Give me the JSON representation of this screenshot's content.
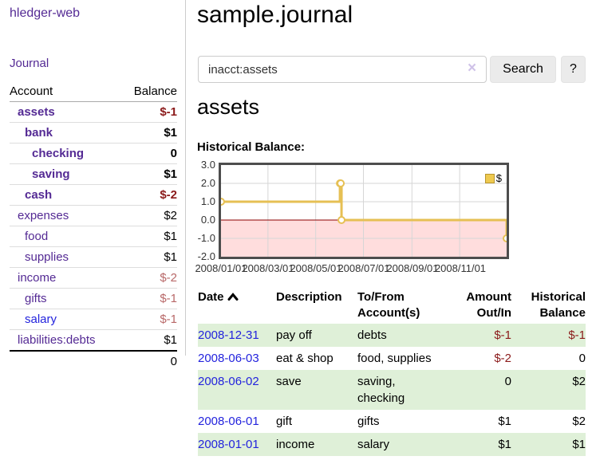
{
  "colors": {
    "purple": "#542a94",
    "blue": "#2323dd",
    "neg": "#8b1a1a",
    "negmuted": "#b86868",
    "stripe": "#dff0d8"
  },
  "sidebar": {
    "brand": "hledger-web",
    "journal_link": "Journal",
    "header": {
      "account": "Account",
      "balance": "Balance"
    },
    "accounts": [
      {
        "name": "assets",
        "balance": "$-1"
      },
      {
        "name": "bank",
        "balance": "$1"
      },
      {
        "name": "checking",
        "balance": "0"
      },
      {
        "name": "saving",
        "balance": "$1"
      },
      {
        "name": "cash",
        "balance": "$-2"
      },
      {
        "name": "expenses",
        "balance": "$2"
      },
      {
        "name": "food",
        "balance": "$1"
      },
      {
        "name": "supplies",
        "balance": "$1"
      },
      {
        "name": "income",
        "balance": "$-2"
      },
      {
        "name": "gifts",
        "balance": "$-1"
      },
      {
        "name": "salary",
        "balance": "$-1"
      },
      {
        "name": "liabilities:debts",
        "balance": "$1"
      }
    ],
    "total": "0"
  },
  "main": {
    "title": "sample.journal",
    "search": {
      "value": "inacct:assets",
      "clear_icon": "×",
      "search_button": "Search",
      "help_button": "?"
    },
    "account_heading": "assets",
    "chart_title": "Historical Balance:"
  },
  "chart_data": {
    "type": "line",
    "step": "after",
    "title": "Historical Balance:",
    "legend": {
      "label": "$",
      "position": "top-right"
    },
    "x": [
      "2008-01-01",
      "2008-06-01",
      "2008-06-02",
      "2008-06-03",
      "2008-12-31"
    ],
    "series": [
      {
        "name": "$",
        "values": [
          1,
          2,
          2,
          0,
          -1
        ]
      }
    ],
    "xlim": [
      "2008-01-01",
      "2008-12-31"
    ],
    "ylim": [
      -2,
      3
    ],
    "yticks": [
      "3.0",
      "2.0",
      "1.0",
      "0.0",
      "-1.0",
      "-2.0"
    ],
    "xticks": [
      "2008/01/01",
      "2008/03/01",
      "2008/05/01",
      "2008/07/01",
      "2008/09/01",
      "2008/11/01"
    ],
    "grid": true,
    "line_color": "#e6c054",
    "marker_fill": "#ffffff",
    "negative_region_color": "#ffdddd",
    "zero_line_color": "#8b0000",
    "grid_color": "#d6d6d6"
  },
  "register": {
    "headers": {
      "date": "Date",
      "description": "Description",
      "accounts": "To/From Account(s)",
      "amount": "Amount Out/In",
      "balance": "Historical Balance"
    },
    "sort_icon": "chevron-up",
    "rows": [
      {
        "date": "2008-12-31",
        "description": "pay off",
        "accounts": "debts",
        "amount": "$-1",
        "balance": "$-1"
      },
      {
        "date": "2008-06-03",
        "description": "eat & shop",
        "accounts": "food, supplies",
        "amount": "$-2",
        "balance": "0"
      },
      {
        "date": "2008-06-02",
        "description": "save",
        "accounts": "saving, checking",
        "amount": "0",
        "balance": "$2"
      },
      {
        "date": "2008-06-01",
        "description": "gift",
        "accounts": "gifts",
        "amount": "$1",
        "balance": "$2"
      },
      {
        "date": "2008-01-01",
        "description": "income",
        "accounts": "salary",
        "amount": "$1",
        "balance": "$1"
      }
    ]
  }
}
